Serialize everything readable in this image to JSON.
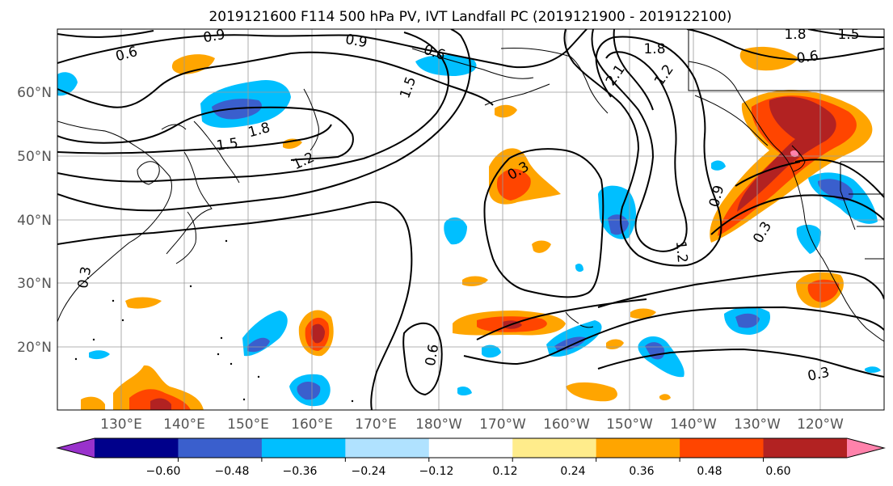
{
  "title": "2019121600 F114 500 hPa PV, IVT Landfall PC (2019121900 - 2019122100)",
  "map": {
    "lat_labels": [
      "60°N",
      "50°N",
      "40°N",
      "30°N",
      "20°N"
    ],
    "lon_labels": [
      "130°E",
      "140°E",
      "150°E",
      "160°E",
      "170°E",
      "180°W",
      "170°W",
      "160°W",
      "150°W",
      "140°W",
      "130°W",
      "120°W"
    ],
    "contour_labels": [
      "0.6",
      "0.9",
      "0.9",
      "0.6",
      "1.8",
      "1.8",
      "1.5",
      "2.1",
      "1.2",
      "1.5",
      "1.8",
      "1.2",
      "1.5",
      "0.6",
      "0.3",
      "0.9",
      "0.3",
      "1.2",
      "0.3",
      "0.6",
      "0.3"
    ]
  },
  "colorbar": {
    "ticks": [
      "−0.60",
      "−0.48",
      "−0.36",
      "−0.24",
      "−0.12",
      "0.12",
      "0.24",
      "0.36",
      "0.48",
      "0.60"
    ],
    "colors": [
      "#9932cc",
      "#00008b",
      "#3a5fcd",
      "#00bfff",
      "#b0e2ff",
      "#ffffff",
      "#ffec8b",
      "#ffa500",
      "#ff4500",
      "#b22222",
      "#ff82ab"
    ]
  }
}
